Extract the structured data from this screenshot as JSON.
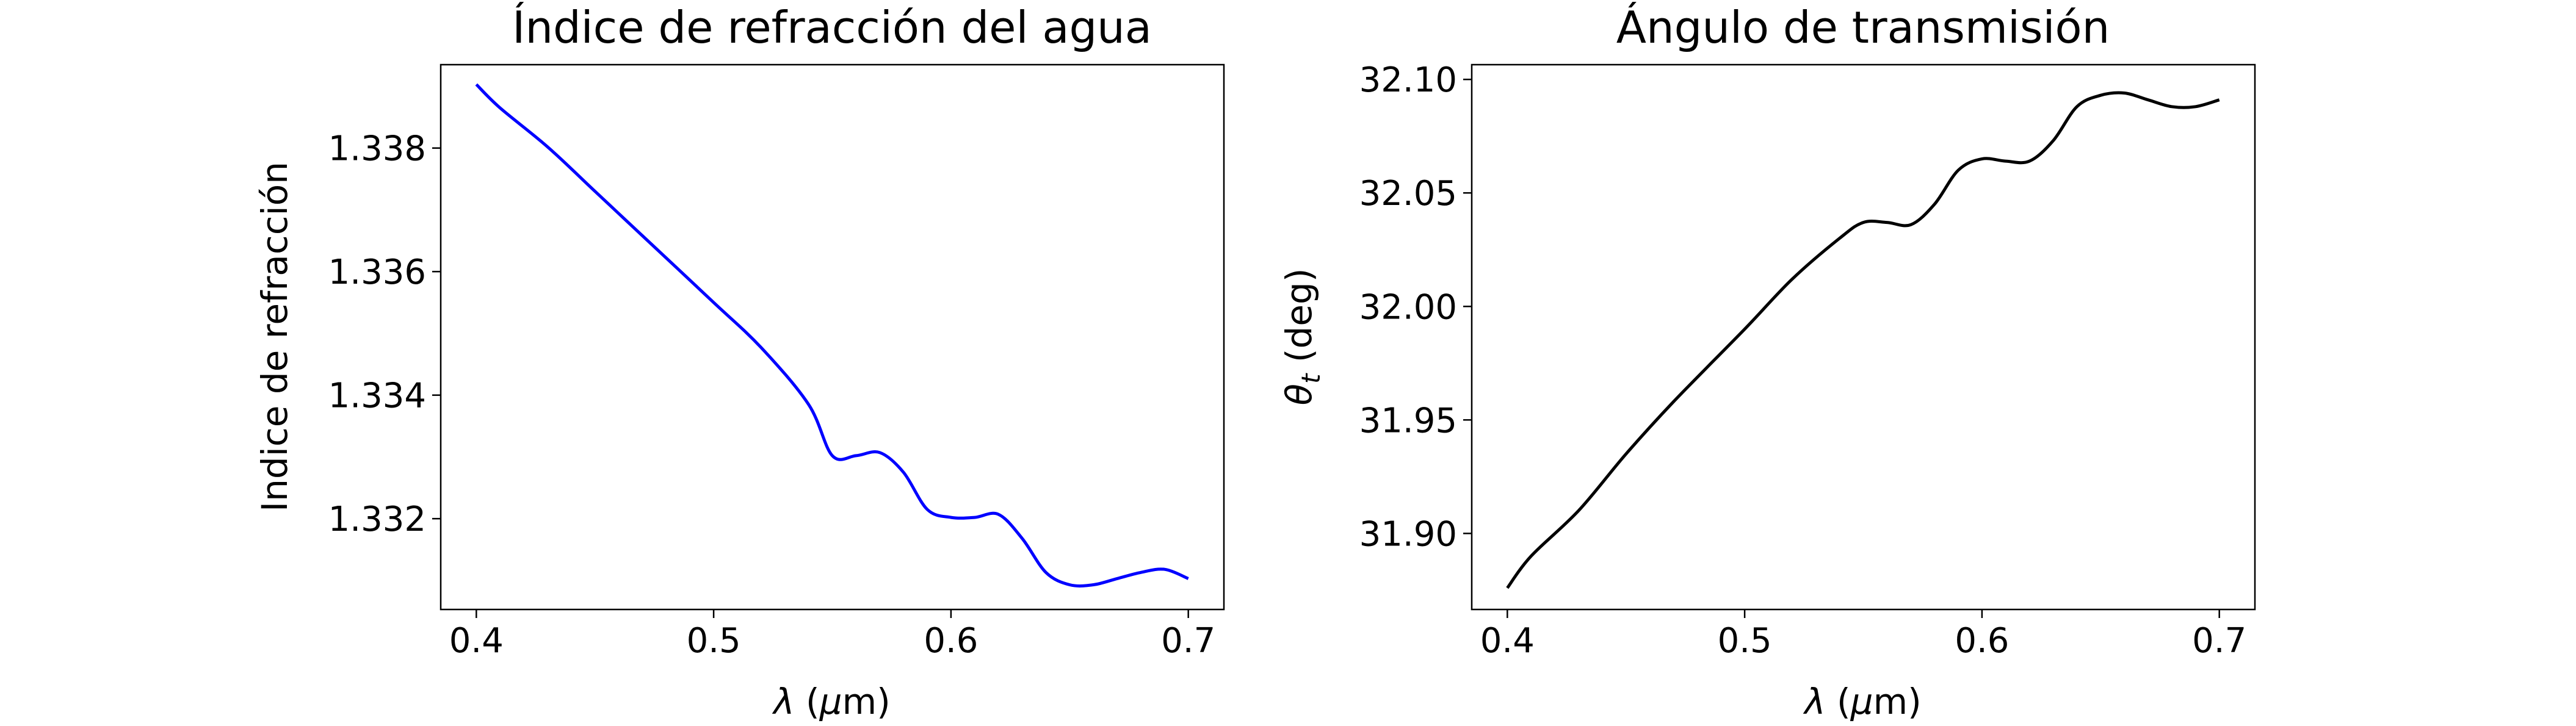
{
  "chart_data": [
    {
      "type": "line",
      "title": "Índice de refracción del agua",
      "xlabel_sym": "λ",
      "xlabel_mu": "μ",
      "xlabel_pre": " (",
      "xlabel_post": "m)",
      "ylabel": "Indice de refracción",
      "xlim": [
        0.385,
        0.715
      ],
      "ylim": [
        1.33053,
        1.33935
      ],
      "xticks": [
        0.4,
        0.5,
        0.6,
        0.7
      ],
      "xtick_labels": [
        "0.4",
        "0.5",
        "0.6",
        "0.7"
      ],
      "yticks": [
        1.332,
        1.334,
        1.336,
        1.338
      ],
      "ytick_labels": [
        "1.332",
        "1.334",
        "1.336",
        "1.338"
      ],
      "grid": false,
      "color": "#0000ff",
      "x": [
        0.4,
        0.41,
        0.43,
        0.45,
        0.47,
        0.5,
        0.52,
        0.54,
        0.55,
        0.56,
        0.57,
        0.58,
        0.59,
        0.6,
        0.61,
        0.62,
        0.63,
        0.64,
        0.65,
        0.66,
        0.67,
        0.68,
        0.69,
        0.7
      ],
      "y": [
        1.33903,
        1.33865,
        1.33802,
        1.3373,
        1.33658,
        1.3355,
        1.33477,
        1.33385,
        1.33302,
        1.33302,
        1.33307,
        1.33275,
        1.33215,
        1.33202,
        1.33202,
        1.33207,
        1.33168,
        1.33113,
        1.33093,
        1.33093,
        1.33103,
        1.33113,
        1.33118,
        1.33103
      ]
    },
    {
      "type": "line",
      "title": "Ángulo de transmisión",
      "xlabel_sym": "λ",
      "xlabel_mu": "μ",
      "xlabel_pre": " (",
      "xlabel_post": "m)",
      "ylabel_sym": "θ",
      "ylabel_sub": "t",
      "ylabel_rest": " (deg)",
      "xlim": [
        0.385,
        0.715
      ],
      "ylim": [
        31.8665,
        32.1065
      ],
      "xticks": [
        0.4,
        0.5,
        0.6,
        0.7
      ],
      "xtick_labels": [
        "0.4",
        "0.5",
        "0.6",
        "0.7"
      ],
      "yticks": [
        31.9,
        31.95,
        32.0,
        32.05,
        32.1
      ],
      "ytick_labels": [
        "31.90",
        "31.95",
        "32.00",
        "32.05",
        "32.10"
      ],
      "grid": false,
      "color": "#000000",
      "x": [
        0.4,
        0.41,
        0.43,
        0.45,
        0.47,
        0.5,
        0.52,
        0.54,
        0.55,
        0.56,
        0.57,
        0.58,
        0.59,
        0.6,
        0.61,
        0.62,
        0.63,
        0.64,
        0.65,
        0.66,
        0.67,
        0.68,
        0.69,
        0.7
      ],
      "y": [
        31.876,
        31.89,
        31.91,
        31.935,
        31.958,
        31.99,
        32.012,
        32.03,
        32.037,
        32.037,
        32.036,
        32.045,
        32.06,
        32.065,
        32.064,
        32.064,
        32.073,
        32.088,
        32.093,
        32.094,
        32.091,
        32.088,
        32.088,
        32.091
      ]
    }
  ]
}
